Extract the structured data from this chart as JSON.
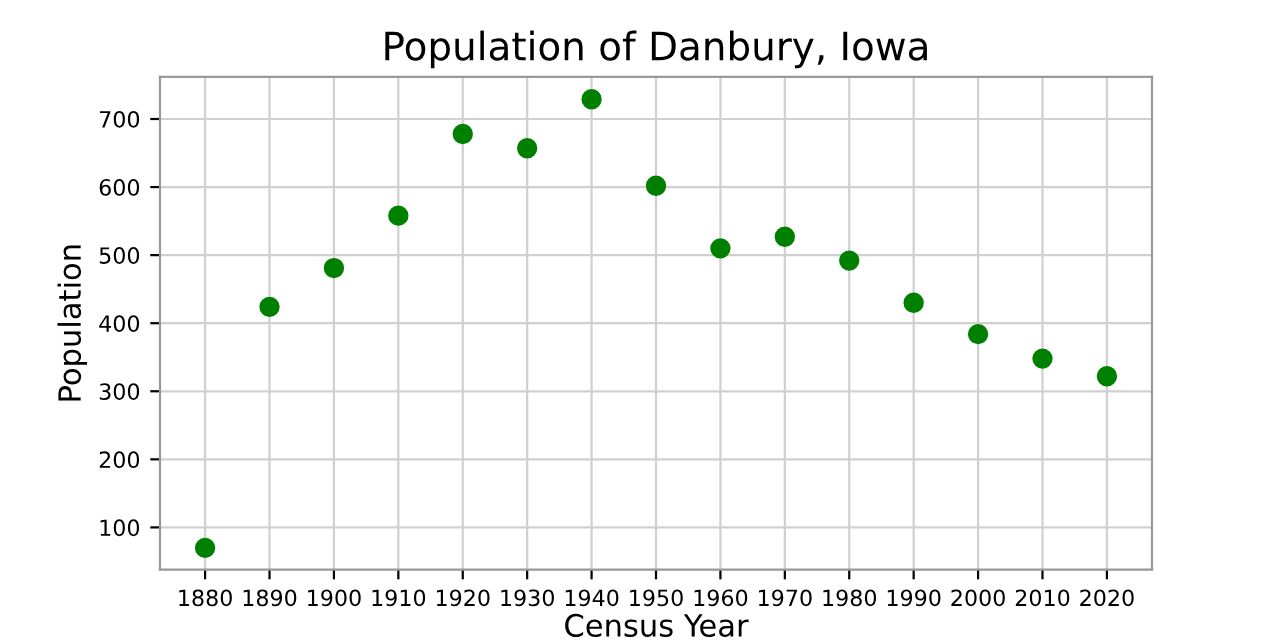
{
  "chart_data": {
    "type": "scatter",
    "title": "Population of Danbury, Iowa",
    "xlabel": "Census Year",
    "ylabel": "Population",
    "x": [
      1880,
      1890,
      1900,
      1910,
      1920,
      1930,
      1940,
      1950,
      1960,
      1970,
      1980,
      1990,
      2000,
      2010,
      2020
    ],
    "series": [
      {
        "color": "#008000",
        "values": [
          70,
          424,
          481,
          558,
          678,
          657,
          729,
          602,
          510,
          527,
          492,
          430,
          384,
          348,
          322
        ]
      }
    ],
    "xlim": [
      1873,
      2027
    ],
    "xticks": [
      1880,
      1890,
      1900,
      1910,
      1920,
      1930,
      1940,
      1950,
      1960,
      1970,
      1980,
      1990,
      2000,
      2010,
      2020
    ],
    "ylim": [
      38,
      762
    ],
    "yticks": [
      100,
      200,
      300,
      400,
      500,
      600,
      700
    ],
    "grid": true,
    "marker": "circle"
  }
}
